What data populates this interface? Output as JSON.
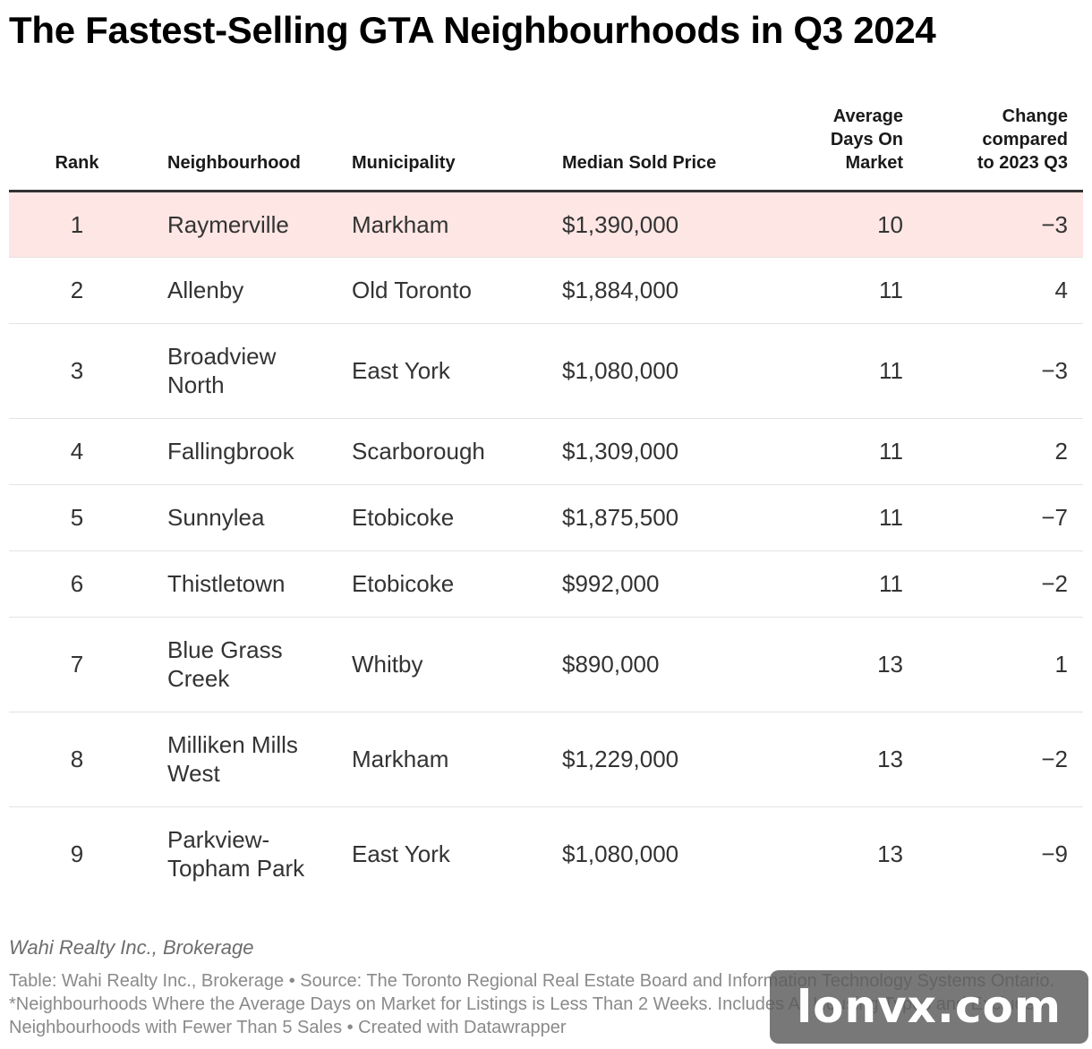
{
  "title": "The Fastest-Selling GTA Neighbourhoods in Q3 2024",
  "highlight_color": "#fde6e4",
  "chart_data": {
    "type": "table",
    "columns": [
      "Rank",
      "Neighbourhood",
      "Municipality",
      "Median Sold Price",
      "Average Days On Market",
      "Change compared to 2023 Q3"
    ],
    "rows": [
      {
        "rank": "1",
        "neighbourhood": "Raymerville",
        "municipality": "Markham",
        "price": "$1,390,000",
        "days": "10",
        "change": "−3"
      },
      {
        "rank": "2",
        "neighbourhood": "Allenby",
        "municipality": "Old Toronto",
        "price": "$1,884,000",
        "days": "11",
        "change": "4"
      },
      {
        "rank": "3",
        "neighbourhood": "Broadview North",
        "municipality": "East York",
        "price": "$1,080,000",
        "days": "11",
        "change": "−3"
      },
      {
        "rank": "4",
        "neighbourhood": "Fallingbrook",
        "municipality": "Scarborough",
        "price": "$1,309,000",
        "days": "11",
        "change": "2"
      },
      {
        "rank": "5",
        "neighbourhood": "Sunnylea",
        "municipality": "Etobicoke",
        "price": "$1,875,500",
        "days": "11",
        "change": "−7"
      },
      {
        "rank": "6",
        "neighbourhood": "Thistletown",
        "municipality": "Etobicoke",
        "price": "$992,000",
        "days": "11",
        "change": "−2"
      },
      {
        "rank": "7",
        "neighbourhood": "Blue Grass Creek",
        "municipality": "Whitby",
        "price": "$890,000",
        "days": "13",
        "change": "1"
      },
      {
        "rank": "8",
        "neighbourhood": "Milliken Mills West",
        "municipality": "Markham",
        "price": "$1,229,000",
        "days": "13",
        "change": "−2"
      },
      {
        "rank": "9",
        "neighbourhood": "Parkview-Topham Park",
        "municipality": "East York",
        "price": "$1,080,000",
        "days": "13",
        "change": "−9"
      }
    ]
  },
  "byline": "Wahi Realty Inc., Brokerage",
  "notes": "Table: Wahi Realty Inc., Brokerage • Source: The Toronto Regional Real Estate Board and Information Technology Systems Ontario. *Neighbourhoods Where the Average Days on Market for Listings is Less Than 2 Weeks. Includes All Housing Types and Excludes Neighbourhoods with Fewer Than 5 Sales • Created with Datawrapper",
  "watermark": "lonvx.com"
}
